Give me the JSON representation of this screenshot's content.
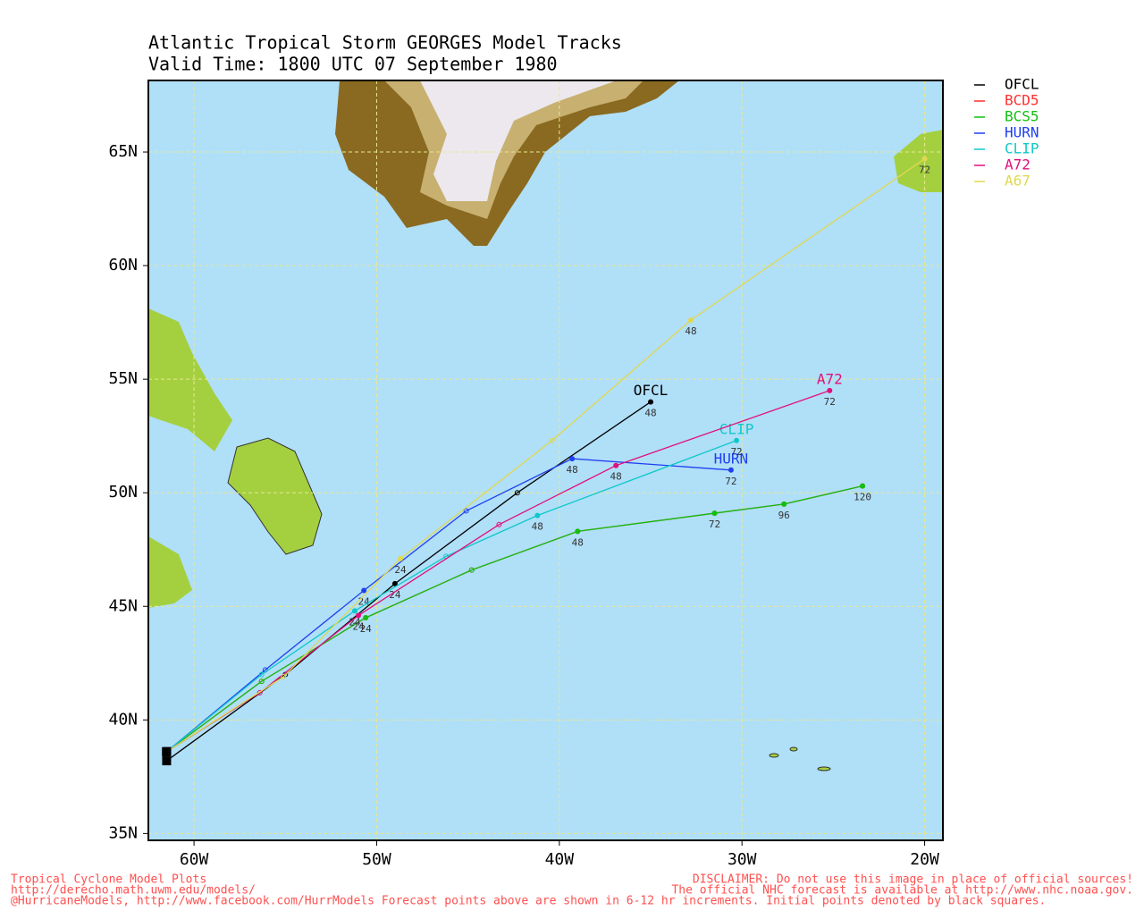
{
  "chart_data": {
    "type": "track",
    "title": "Atlantic Tropical Storm GEORGES Model Tracks",
    "subtitle": "Valid Time: 1800 UTC 07 September 1980",
    "xlim": [
      -62.5,
      -19.0
    ],
    "ylim": [
      34.7,
      68.15
    ],
    "xticks": [
      {
        "value": -60,
        "label": "60W"
      },
      {
        "value": -50,
        "label": "50W"
      },
      {
        "value": -40,
        "label": "40W"
      },
      {
        "value": -30,
        "label": "30W"
      },
      {
        "value": -20,
        "label": "20W"
      }
    ],
    "yticks": [
      {
        "value": 35,
        "label": "35N"
      },
      {
        "value": 40,
        "label": "40N"
      },
      {
        "value": 45,
        "label": "45N"
      },
      {
        "value": 50,
        "label": "50N"
      },
      {
        "value": 55,
        "label": "55N"
      },
      {
        "value": 60,
        "label": "60N"
      },
      {
        "value": 65,
        "label": "65N"
      }
    ],
    "grid": true,
    "series": [
      {
        "name": "OFCL",
        "color": "#000000",
        "label_end": true,
        "lon": [
          -61.5,
          -55.0,
          -49.0,
          -42.3,
          -35.0
        ],
        "lat": [
          38.2,
          42.0,
          46.0,
          50.0,
          54.0
        ],
        "hours": [
          null,
          null,
          24,
          null,
          48
        ]
      },
      {
        "name": "BCD5",
        "color": "#ff3030",
        "label_end": false,
        "lon": [
          -61.5,
          -56.3,
          -50.6,
          -44.8,
          -39.0,
          -31.5,
          -27.7,
          -23.4
        ],
        "lat": [
          38.6,
          41.7,
          44.5,
          46.6,
          48.3,
          49.1,
          49.5,
          50.3
        ],
        "hours": [
          null,
          null,
          null,
          null,
          null,
          null,
          null,
          null
        ]
      },
      {
        "name": "BCS5",
        "color": "#10c010",
        "label_end": false,
        "lon": [
          -61.5,
          -56.3,
          -50.6,
          -44.8,
          -39.0,
          -31.5,
          -27.7,
          -23.4
        ],
        "lat": [
          38.6,
          41.7,
          44.5,
          46.6,
          48.3,
          49.1,
          49.5,
          50.3
        ],
        "hours": [
          null,
          null,
          24,
          null,
          48,
          72,
          96,
          120
        ]
      },
      {
        "name": "HURN",
        "color": "#2040f0",
        "label_end": true,
        "lon": [
          -61.5,
          -56.1,
          -50.7,
          -45.1,
          -39.3,
          -30.6
        ],
        "lat": [
          38.6,
          42.2,
          45.7,
          49.2,
          51.5,
          51.0
        ],
        "hours": [
          null,
          null,
          24,
          null,
          48,
          72
        ]
      },
      {
        "name": "CLIP",
        "color": "#10c8c8",
        "label_end": true,
        "lon": [
          -61.5,
          -56.3,
          -51.2,
          -46.2,
          -41.2,
          -30.3
        ],
        "lat": [
          38.6,
          42.0,
          44.8,
          47.2,
          49.0,
          52.3
        ],
        "hours": [
          null,
          null,
          24,
          null,
          48,
          72
        ]
      },
      {
        "name": "A72",
        "color": "#e0107a",
        "label_end": true,
        "lon": [
          -61.5,
          -56.4,
          -51.0,
          -43.3,
          -36.9,
          -25.2
        ],
        "lat": [
          38.6,
          41.2,
          44.6,
          48.6,
          51.2,
          54.5
        ],
        "hours": [
          null,
          null,
          24,
          null,
          48,
          72
        ]
      },
      {
        "name": "A67",
        "color": "#e0d850",
        "label_end": false,
        "lon": [
          -61.5,
          -55.1,
          -48.7,
          -40.4,
          -32.8,
          -20.0
        ],
        "lat": [
          38.6,
          41.9,
          47.1,
          52.3,
          57.6,
          64.7
        ],
        "hours": [
          null,
          null,
          24,
          null,
          48,
          72
        ]
      }
    ]
  },
  "footer": {
    "left": [
      "Tropical Cyclone Model Plots",
      "http://derecho.math.uwm.edu/models/",
      "@HurricaneModels, http://www.facebook.com/HurrModels  Forecast points above are shown in 6-12 hr increments. Initial points denoted by black squares."
    ],
    "right": [
      "DISCLAIMER: Do not use this image in place of official sources!",
      "The official NHC forecast is available at http://www.nhc.noaa.gov."
    ]
  }
}
